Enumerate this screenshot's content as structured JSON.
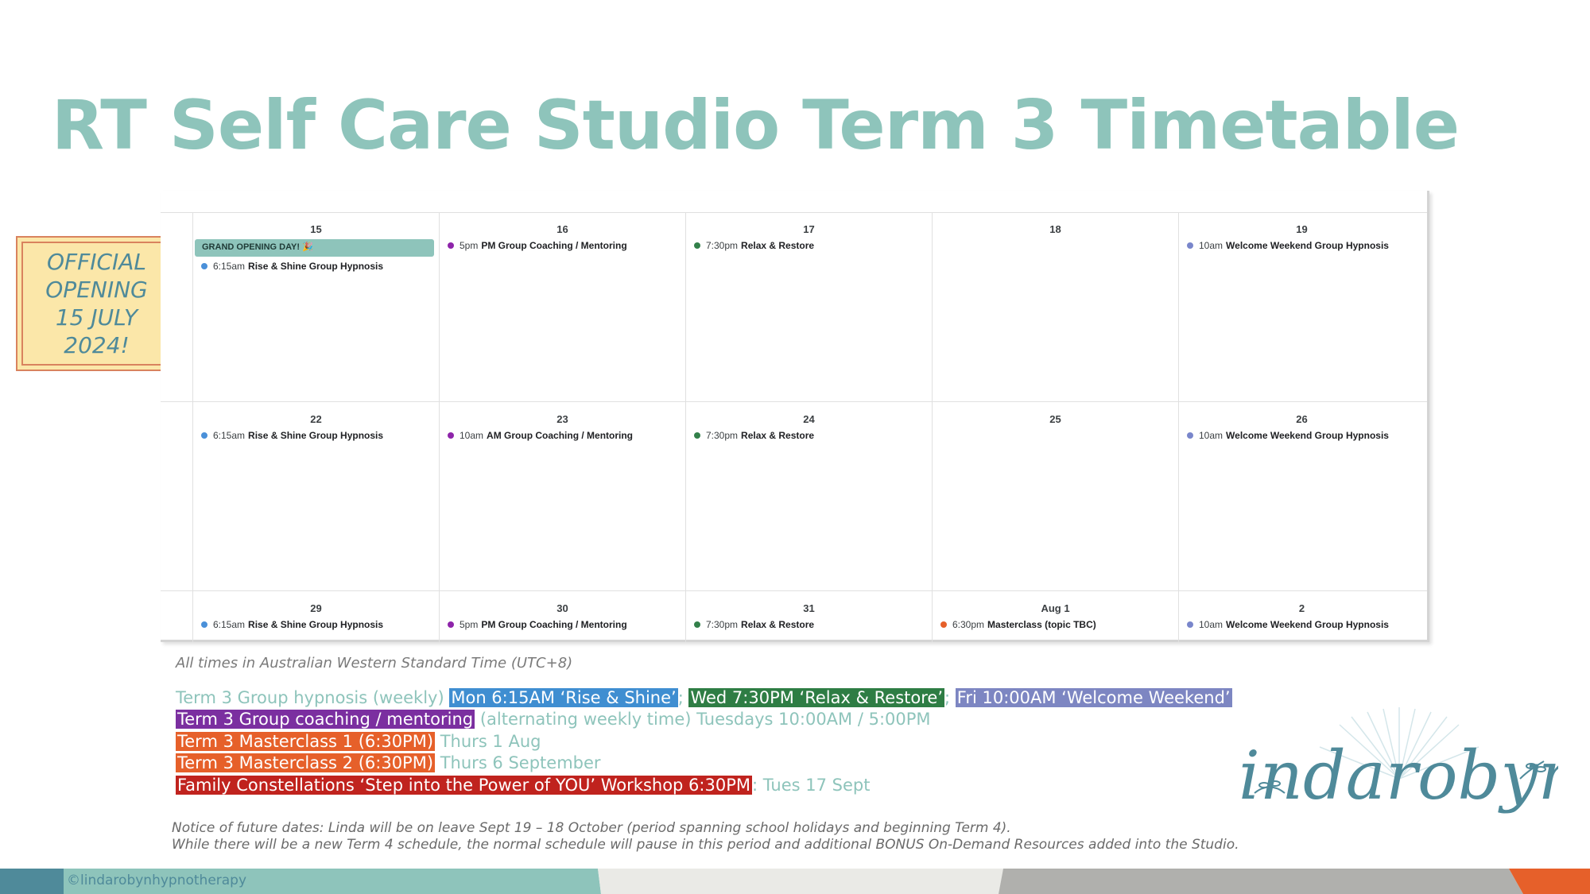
{
  "title": "RT Self Care Studio Term 3 Timetable",
  "badge": {
    "text": "OFFICIAL OPENING 15 JULY 2024!"
  },
  "colors": {
    "teal": "#8ec4bb",
    "hypnosis_blue": "#3f8ed1",
    "relax_green": "#2e7d44",
    "weekend_lavender": "#7d86c2",
    "coaching_purple": "#7b2fa0",
    "masterclass_orange": "#e6602a",
    "workshop_red": "#c0231e"
  },
  "calendar": {
    "weeks": [
      {
        "days": [
          {
            "date": "15",
            "allday": "GRAND OPENING DAY! 🎉",
            "events": [
              {
                "time": "6:15am",
                "title": "Rise & Shine Group Hypnosis",
                "color": "#4a90d9"
              }
            ]
          },
          {
            "date": "16",
            "events": [
              {
                "time": "5pm",
                "title": "PM Group Coaching / Mentoring",
                "color": "#8e24aa"
              }
            ]
          },
          {
            "date": "17",
            "events": [
              {
                "time": "7:30pm",
                "title": "Relax & Restore",
                "color": "#33804a"
              }
            ]
          },
          {
            "date": "18",
            "events": []
          },
          {
            "date": "19",
            "events": [
              {
                "time": "10am",
                "title": "Welcome Weekend Group Hypnosis",
                "color": "#7986cb"
              }
            ]
          }
        ]
      },
      {
        "days": [
          {
            "date": "22",
            "events": [
              {
                "time": "6:15am",
                "title": "Rise & Shine Group Hypnosis",
                "color": "#4a90d9"
              }
            ]
          },
          {
            "date": "23",
            "events": [
              {
                "time": "10am",
                "title": "AM Group Coaching / Mentoring",
                "color": "#8e24aa"
              }
            ]
          },
          {
            "date": "24",
            "events": [
              {
                "time": "7:30pm",
                "title": "Relax & Restore",
                "color": "#33804a"
              }
            ]
          },
          {
            "date": "25",
            "events": []
          },
          {
            "date": "26",
            "events": [
              {
                "time": "10am",
                "title": "Welcome Weekend Group Hypnosis",
                "color": "#7986cb"
              }
            ]
          }
        ]
      },
      {
        "days": [
          {
            "date": "29",
            "events": [
              {
                "time": "6:15am",
                "title": "Rise & Shine Group Hypnosis",
                "color": "#4a90d9"
              }
            ]
          },
          {
            "date": "30",
            "events": [
              {
                "time": "5pm",
                "title": "PM Group Coaching / Mentoring",
                "color": "#8e24aa"
              }
            ]
          },
          {
            "date": "31",
            "events": [
              {
                "time": "7:30pm",
                "title": "Relax & Restore",
                "color": "#33804a"
              }
            ]
          },
          {
            "date": "Aug 1",
            "events": [
              {
                "time": "6:30pm",
                "title": "Masterclass (topic TBC)",
                "color": "#e6602a"
              }
            ]
          },
          {
            "date": "2",
            "events": [
              {
                "time": "10am",
                "title": "Welcome Weekend Group Hypnosis",
                "color": "#7986cb"
              }
            ]
          }
        ]
      }
    ]
  },
  "tz_note": "All times in Australian Western Standard Time (UTC+8)",
  "schedule": {
    "hypnosis_label": "Term 3 Group hypnosis (weekly)",
    "hypnosis_mon": "Mon 6:15AM ‘Rise & Shine’",
    "sep1": ";",
    "hypnosis_wed": "Wed 7:30PM ‘Relax & Restore’",
    "sep2": ";",
    "hypnosis_fri": "Fri 10:00AM ‘Welcome Weekend’",
    "coaching_label": "Term 3 Group coaching / mentoring",
    "coaching_detail": "(alternating weekly time) Tuesdays 10:00AM / 5:00PM",
    "mc1_label": "Term 3 Masterclass 1 (6:30PM)",
    "mc1_date": "Thurs 1 Aug",
    "mc2_label": "Term 3 Masterclass 2 (6:30PM)",
    "mc2_date": "Thurs 6 September",
    "workshop_label": "Family Constellations ‘Step into the Power of YOU’ Workshop 6:30PM",
    "workshop_sep": ":",
    "workshop_date": "Tues 17 Sept"
  },
  "notice": {
    "line1": "Notice of future dates: Linda will be on leave Sept 19 – 18 October (period spanning school holidays and beginning Term 4).",
    "line2": "While there will be a new Term 4 schedule, the normal schedule will pause in this period and additional BONUS On-Demand Resources added into the Studio."
  },
  "logo_text": "lindarobyn",
  "footer": {
    "handle": "©lindarobynhypnotherapy"
  }
}
